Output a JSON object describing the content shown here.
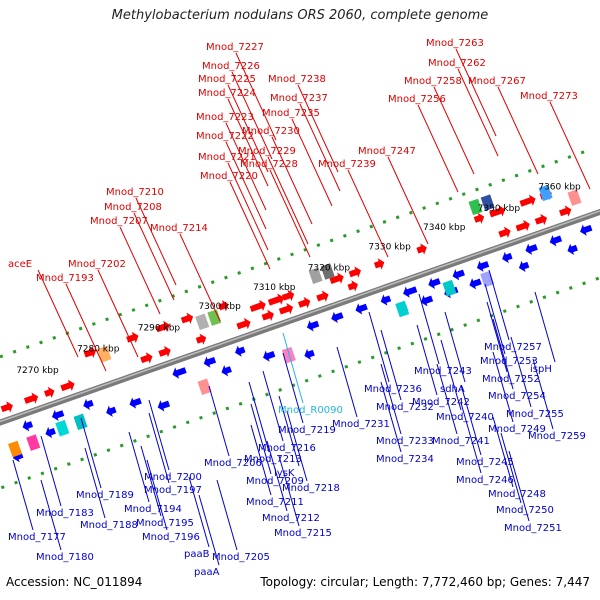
{
  "title": "Methylobacterium nodulans ORS 2060, complete genome",
  "accession": "Accession: NC_011894",
  "topology": "Topology: circular; Length: 7,772,460 bp; Genes: 7,447",
  "colors": {
    "forward": "#ff0000",
    "reverse": "#0000ff",
    "ncrna": "#20b8e0",
    "backbone": "#808080",
    "dotted_track": "#2a9a2a"
  },
  "axis_ticks": [
    "7270 kbp",
    "7280 kbp",
    "7290 kbp",
    "7300 kbp",
    "7310 kbp",
    "7320 kbp",
    "7330 kbp",
    "7340 kbp",
    "7350 kbp",
    "7360 kbp"
  ],
  "top_labels": [
    "aceE",
    "Mnod_7193",
    "Mnod_7202",
    "Mnod_7207",
    "Mnod_7208",
    "Mnod_7210",
    "Mnod_7214",
    "Mnod_7220",
    "Mnod_7221",
    "Mnod_7222",
    "Mnod_7223",
    "Mnod_7224",
    "Mnod_7225",
    "Mnod_7226",
    "Mnod_7227",
    "Mnod_7228",
    "Mnod_7229",
    "Mnod_7230",
    "Mnod_7235",
    "Mnod_7237",
    "Mnod_7238",
    "Mnod_7239",
    "Mnod_7247",
    "Mnod_7256",
    "Mnod_7258",
    "Mnod_7262",
    "Mnod_7263",
    "Mnod_7267",
    "Mnod_7273"
  ],
  "bottom_labels": [
    "Mnod_7177",
    "Mnod_7180",
    "Mnod_7183",
    "Mnod_7188",
    "Mnod_7189",
    "Mnod_7194",
    "Mnod_7195",
    "Mnod_7196",
    "Mnod_7197",
    "Mnod_7200",
    "Mnod_7205",
    "Mnod_7206",
    "Mnod_7209",
    "Mnod_7211",
    "Mnod_7212",
    "Mnod_7213",
    "Mnod_7215",
    "Mnod_7216",
    "Mnod_7218",
    "Mnod_7219",
    "lysK",
    "paaB",
    "paaA",
    "Mnod_R0090",
    "Mnod_7231",
    "Mnod_7232",
    "Mnod_7233",
    "Mnod_7234",
    "Mnod_7236",
    "Mnod_7240",
    "Mnod_7241",
    "Mnod_7242",
    "Mnod_7243",
    "sdhA",
    "Mnod_7245",
    "Mnod_7246",
    "Mnod_7248",
    "Mnod_7249",
    "Mnod_7250",
    "Mnod_7251",
    "Mnod_7252",
    "Mnod_7253",
    "Mnod_7254",
    "Mnod_7255",
    "Mnod_7257",
    "Mnod_7259",
    "ispH"
  ]
}
